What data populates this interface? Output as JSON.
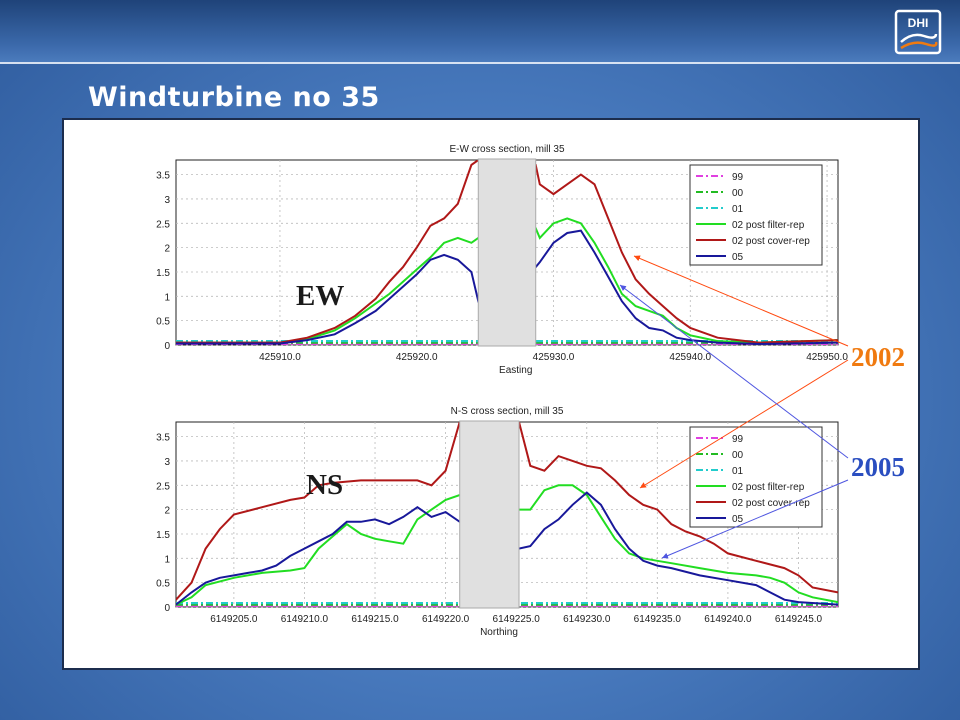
{
  "slide": {
    "title": "Windturbine no  35",
    "logo_text": "DHI"
  },
  "callouts": {
    "ew": "EW",
    "ns": "NS",
    "y2002": "2002",
    "y2005": "2005"
  },
  "colors": {
    "c99": "#e040e0",
    "c00": "#22bb22",
    "c01": "#22cccc",
    "c02f": "#22dd22",
    "c02c": "#b01818",
    "c05": "#18189a",
    "arrow2002": "#ff4a10",
    "arrow2005": "#4f56e0",
    "callout2002": "#f07a10",
    "callout2005": "#2a4ec0"
  },
  "legend": [
    "99",
    "00",
    "01",
    "02 post filter-rep",
    "02 post cover-rep",
    "05"
  ],
  "chart_data": [
    {
      "type": "line",
      "title": "E-W cross section, mill 35",
      "xlabel": "Easting",
      "ylabel": "",
      "xlim": [
        425902.4,
        425950.8
      ],
      "ylim": [
        0,
        3.8
      ],
      "x_ticks": [
        "425910.0",
        "425920.0",
        "425930.0",
        "425940.0",
        "425950.0"
      ],
      "x_tick_values": [
        425910,
        425920,
        425930,
        425940,
        425950
      ],
      "y_ticks": [
        "0",
        "0.5",
        "1",
        "1.5",
        "2",
        "2.5",
        "3",
        "3.5"
      ],
      "gap": [
        425924.5,
        425928.7
      ],
      "legend_position": "top-right",
      "series": [
        {
          "name": "99",
          "style": "dashdot",
          "color_key": "c99",
          "points": [
            [
              425902.4,
              0.02
            ],
            [
              425950.8,
              0.02
            ]
          ]
        },
        {
          "name": "00",
          "style": "dashdot",
          "color_key": "c00",
          "points": [
            [
              425902.4,
              0.05
            ],
            [
              425950.8,
              0.05
            ]
          ]
        },
        {
          "name": "01",
          "style": "dashdot",
          "color_key": "c01",
          "points": [
            [
              425902.4,
              0.08
            ],
            [
              425950.8,
              0.08
            ]
          ]
        },
        {
          "name": "02 post filter-rep",
          "style": "solid",
          "color_key": "c02f",
          "points": [
            [
              425902.4,
              0.05
            ],
            [
              425910,
              0.05
            ],
            [
              425912,
              0.12
            ],
            [
              425914,
              0.3
            ],
            [
              425915.5,
              0.55
            ],
            [
              425917,
              0.85
            ],
            [
              425918,
              1.05
            ],
            [
              425919,
              1.3
            ],
            [
              425920,
              1.55
            ],
            [
              425921,
              1.8
            ],
            [
              425922,
              2.1
            ],
            [
              425923,
              2.2
            ],
            [
              425924,
              2.1
            ],
            [
              425924.5,
              2.2
            ],
            [
              425928.7,
              2.4
            ],
            [
              425929,
              2.2
            ],
            [
              425930,
              2.5
            ],
            [
              425931,
              2.6
            ],
            [
              425932,
              2.5
            ],
            [
              425933,
              2.1
            ],
            [
              425934,
              1.6
            ],
            [
              425935,
              1.05
            ],
            [
              425936,
              0.8
            ],
            [
              425937,
              0.7
            ],
            [
              425938,
              0.6
            ],
            [
              425939,
              0.35
            ],
            [
              425940,
              0.2
            ],
            [
              425942,
              0.08
            ],
            [
              425945,
              0.05
            ],
            [
              425950.8,
              0.1
            ]
          ]
        },
        {
          "name": "02 post cover-rep",
          "style": "solid",
          "color_key": "c02c",
          "points": [
            [
              425902.4,
              0.05
            ],
            [
              425910,
              0.05
            ],
            [
              425912,
              0.15
            ],
            [
              425914,
              0.35
            ],
            [
              425915.5,
              0.6
            ],
            [
              425917,
              0.95
            ],
            [
              425918,
              1.3
            ],
            [
              425919,
              1.6
            ],
            [
              425920,
              2.0
            ],
            [
              425921,
              2.45
            ],
            [
              425922,
              2.6
            ],
            [
              425923,
              2.9
            ],
            [
              425924,
              3.7
            ],
            [
              425924.5,
              3.8
            ],
            [
              425928.7,
              3.7
            ],
            [
              425929,
              3.3
            ],
            [
              425930,
              3.1
            ],
            [
              425931,
              3.3
            ],
            [
              425932,
              3.5
            ],
            [
              425933,
              3.3
            ],
            [
              425934,
              2.6
            ],
            [
              425935,
              1.9
            ],
            [
              425936,
              1.35
            ],
            [
              425937,
              1.05
            ],
            [
              425938,
              0.8
            ],
            [
              425939,
              0.55
            ],
            [
              425940,
              0.35
            ],
            [
              425942,
              0.15
            ],
            [
              425945,
              0.05
            ],
            [
              425950.8,
              0.1
            ]
          ]
        },
        {
          "name": "05",
          "style": "solid",
          "color_key": "c05",
          "points": [
            [
              425902.4,
              0.03
            ],
            [
              425910,
              0.03
            ],
            [
              425912,
              0.1
            ],
            [
              425914,
              0.22
            ],
            [
              425915.5,
              0.45
            ],
            [
              425917,
              0.7
            ],
            [
              425918,
              0.95
            ],
            [
              425919,
              1.2
            ],
            [
              425920,
              1.45
            ],
            [
              425921,
              1.75
            ],
            [
              425922,
              1.85
            ],
            [
              425923,
              1.75
            ],
            [
              425924,
              1.5
            ],
            [
              425924.5,
              0.9
            ],
            [
              425928.7,
              1.6
            ],
            [
              425929,
              1.7
            ],
            [
              425930,
              2.1
            ],
            [
              425931,
              2.3
            ],
            [
              425932,
              2.35
            ],
            [
              425933,
              1.9
            ],
            [
              425934,
              1.4
            ],
            [
              425935,
              0.9
            ],
            [
              425936,
              0.55
            ],
            [
              425937,
              0.35
            ],
            [
              425938,
              0.3
            ],
            [
              425939,
              0.15
            ],
            [
              425940,
              0.1
            ],
            [
              425942,
              0.05
            ],
            [
              425945,
              0.02
            ],
            [
              425950.8,
              0.05
            ]
          ]
        }
      ]
    },
    {
      "type": "line",
      "title": "N-S cross section, mill 35",
      "xlabel": "Northing",
      "ylabel": "",
      "xlim": [
        6149200.9,
        6149247.8
      ],
      "ylim": [
        0,
        3.8
      ],
      "x_ticks": [
        "6149205.0",
        "6149210.0",
        "6149215.0",
        "6149220.0",
        "6149225.0",
        "6149230.0",
        "6149235.0",
        "6149240.0",
        "6149245.0"
      ],
      "x_tick_values": [
        6149205,
        6149210,
        6149215,
        6149220,
        6149225,
        6149230,
        6149235,
        6149240,
        6149245
      ],
      "y_ticks": [
        "0",
        "0.5",
        "1",
        "1.5",
        "2",
        "2.5",
        "3",
        "3.5"
      ],
      "gap": [
        6149221.0,
        6149225.2
      ],
      "legend_position": "top-right",
      "series": [
        {
          "name": "99",
          "style": "dashdot",
          "color_key": "c99",
          "points": [
            [
              6149200.9,
              0.02
            ],
            [
              6149247.8,
              0.02
            ]
          ]
        },
        {
          "name": "00",
          "style": "dashdot",
          "color_key": "c00",
          "points": [
            [
              6149200.9,
              0.05
            ],
            [
              6149247.8,
              0.05
            ]
          ]
        },
        {
          "name": "01",
          "style": "dashdot",
          "color_key": "c01",
          "points": [
            [
              6149200.9,
              0.08
            ],
            [
              6149247.8,
              0.08
            ]
          ]
        },
        {
          "name": "02 post filter-rep",
          "style": "solid",
          "color_key": "c02f",
          "points": [
            [
              6149200.9,
              0.05
            ],
            [
              6149202,
              0.2
            ],
            [
              6149203,
              0.45
            ],
            [
              6149205,
              0.6
            ],
            [
              6149207,
              0.7
            ],
            [
              6149209,
              0.75
            ],
            [
              6149210,
              0.8
            ],
            [
              6149211,
              1.2
            ],
            [
              6149212,
              1.45
            ],
            [
              6149213,
              1.7
            ],
            [
              6149214,
              1.5
            ],
            [
              6149215,
              1.4
            ],
            [
              6149216,
              1.35
            ],
            [
              6149217,
              1.3
            ],
            [
              6149218,
              1.8
            ],
            [
              6149219,
              2.0
            ],
            [
              6149220,
              2.2
            ],
            [
              6149221,
              2.3
            ],
            [
              6149225.2,
              2.0
            ],
            [
              6149226,
              2.0
            ],
            [
              6149227,
              2.4
            ],
            [
              6149228,
              2.5
            ],
            [
              6149229,
              2.5
            ],
            [
              6149230,
              2.3
            ],
            [
              6149231,
              1.85
            ],
            [
              6149232,
              1.4
            ],
            [
              6149233,
              1.1
            ],
            [
              6149234,
              1.0
            ],
            [
              6149235,
              0.95
            ],
            [
              6149236,
              0.9
            ],
            [
              6149238,
              0.8
            ],
            [
              6149240,
              0.7
            ],
            [
              6149242,
              0.65
            ],
            [
              6149243,
              0.6
            ],
            [
              6149244,
              0.5
            ],
            [
              6149245,
              0.3
            ],
            [
              6149246,
              0.2
            ],
            [
              6149247.8,
              0.1
            ]
          ]
        },
        {
          "name": "02 post cover-rep",
          "style": "solid",
          "color_key": "c02c",
          "points": [
            [
              6149200.9,
              0.15
            ],
            [
              6149202,
              0.5
            ],
            [
              6149203,
              1.2
            ],
            [
              6149204,
              1.6
            ],
            [
              6149205,
              1.9
            ],
            [
              6149207,
              2.05
            ],
            [
              6149209,
              2.2
            ],
            [
              6149210,
              2.25
            ],
            [
              6149211,
              2.5
            ],
            [
              6149212,
              2.55
            ],
            [
              6149214,
              2.6
            ],
            [
              6149216,
              2.6
            ],
            [
              6149218,
              2.6
            ],
            [
              6149219,
              2.5
            ],
            [
              6149220,
              2.8
            ],
            [
              6149221,
              3.8
            ],
            [
              6149225.2,
              3.8
            ],
            [
              6149226,
              2.9
            ],
            [
              6149227,
              2.8
            ],
            [
              6149228,
              3.1
            ],
            [
              6149229,
              3.0
            ],
            [
              6149230,
              2.9
            ],
            [
              6149231,
              2.85
            ],
            [
              6149232,
              2.6
            ],
            [
              6149233,
              2.3
            ],
            [
              6149234,
              2.1
            ],
            [
              6149235,
              2.0
            ],
            [
              6149236,
              1.7
            ],
            [
              6149237,
              1.55
            ],
            [
              6149238,
              1.45
            ],
            [
              6149239,
              1.3
            ],
            [
              6149240,
              1.1
            ],
            [
              6149242,
              0.95
            ],
            [
              6149244,
              0.8
            ],
            [
              6149245,
              0.65
            ],
            [
              6149246,
              0.4
            ],
            [
              6149247.8,
              0.3
            ]
          ]
        },
        {
          "name": "05",
          "style": "solid",
          "color_key": "c05",
          "points": [
            [
              6149200.9,
              0.05
            ],
            [
              6149202,
              0.3
            ],
            [
              6149203,
              0.5
            ],
            [
              6149204,
              0.6
            ],
            [
              6149205,
              0.65
            ],
            [
              6149206,
              0.7
            ],
            [
              6149207,
              0.75
            ],
            [
              6149208,
              0.85
            ],
            [
              6149209,
              1.05
            ],
            [
              6149210,
              1.2
            ],
            [
              6149211,
              1.35
            ],
            [
              6149212,
              1.5
            ],
            [
              6149213,
              1.75
            ],
            [
              6149214,
              1.75
            ],
            [
              6149215,
              1.8
            ],
            [
              6149216,
              1.7
            ],
            [
              6149217,
              1.85
            ],
            [
              6149218,
              2.05
            ],
            [
              6149219,
              1.85
            ],
            [
              6149220,
              1.95
            ],
            [
              6149221,
              1.75
            ],
            [
              6149225.2,
              1.2
            ],
            [
              6149226,
              1.25
            ],
            [
              6149227,
              1.6
            ],
            [
              6149228,
              1.8
            ],
            [
              6149229,
              2.1
            ],
            [
              6149230,
              2.35
            ],
            [
              6149231,
              2.1
            ],
            [
              6149232,
              1.6
            ],
            [
              6149233,
              1.2
            ],
            [
              6149234,
              0.95
            ],
            [
              6149235,
              0.85
            ],
            [
              6149236,
              0.8
            ],
            [
              6149238,
              0.65
            ],
            [
              6149240,
              0.55
            ],
            [
              6149242,
              0.45
            ],
            [
              6149243,
              0.3
            ],
            [
              6149244,
              0.15
            ],
            [
              6149245,
              0.1
            ],
            [
              6149247.8,
              0.05
            ]
          ]
        }
      ]
    }
  ]
}
